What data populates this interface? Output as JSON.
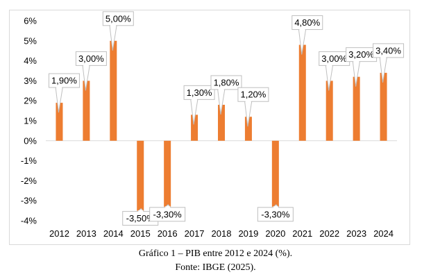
{
  "chart_data": {
    "type": "bar",
    "categories": [
      "2012",
      "2013",
      "2014",
      "2015",
      "2016",
      "2017",
      "2018",
      "2019",
      "2020",
      "2021",
      "2022",
      "2023",
      "2024"
    ],
    "values": [
      1.9,
      3.0,
      5.0,
      -3.5,
      -3.3,
      1.3,
      1.8,
      1.2,
      -3.3,
      4.8,
      3.0,
      3.2,
      3.4
    ],
    "data_labels": [
      "1,90%",
      "3,00%",
      "5,00%",
      "-3,50%",
      "-3,30%",
      "1,30%",
      "1,80%",
      "1,20%",
      "-3,30%",
      "4,80%",
      "3,00%",
      "3,20%",
      "3,40%"
    ],
    "y_ticks": [
      {
        "value": 6,
        "label": "6%"
      },
      {
        "value": 5,
        "label": "5%"
      },
      {
        "value": 4,
        "label": "4%"
      },
      {
        "value": 3,
        "label": "3%"
      },
      {
        "value": 2,
        "label": "2%"
      },
      {
        "value": 1,
        "label": "1%"
      },
      {
        "value": 0,
        "label": "0%"
      },
      {
        "value": -1,
        "label": "-1%"
      },
      {
        "value": -2,
        "label": "-2%"
      },
      {
        "value": -3,
        "label": "-3%"
      },
      {
        "value": -4,
        "label": "-4%"
      }
    ],
    "ylim": [
      -4,
      6
    ],
    "bar_color": "#ed7d31",
    "grid": false,
    "title": "",
    "xlabel": "",
    "ylabel": ""
  },
  "caption": {
    "title": "Gráfico 1 – PIB entre 2012 e 2024 (%).",
    "source": "Fonte: IBGE (2025)."
  }
}
